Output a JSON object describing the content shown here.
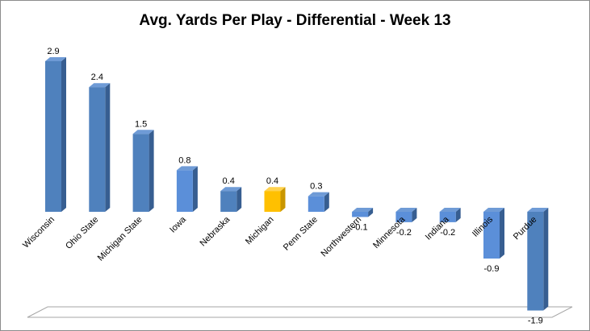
{
  "chart_data": {
    "type": "bar",
    "title": "Avg. Yards Per Play - Differential  - Week 13",
    "xlabel": "",
    "ylabel": "",
    "ylim": [
      -1.9,
      2.9
    ],
    "grid": false,
    "legend": "none",
    "categories": [
      "Wisconsin",
      "Ohio State",
      "Michigan State",
      "Iowa",
      "Nebraska",
      "Michigan",
      "Penn State",
      "Northwestern",
      "Minnesota",
      "Indiana",
      "Illinois",
      "Purdue"
    ],
    "values": [
      2.9,
      2.4,
      1.5,
      0.8,
      0.4,
      0.4,
      0.3,
      -0.1,
      -0.2,
      -0.2,
      -0.9,
      -1.9
    ],
    "data_labels": [
      "2.9",
      "2.4",
      "1.5",
      "0.8",
      "0.4",
      "0.4",
      "0.3",
      "-0.1",
      "-0.2",
      "-0.2",
      "-0.9",
      "-1.9"
    ],
    "colors": {
      "default_front": "#4f81bd",
      "default_top": "#6f9bd6",
      "default_side": "#375e91",
      "group2_front": "#5b8fd9",
      "highlight_front": "#ffc000",
      "highlight_top": "#ffd24d",
      "highlight_side": "#c99600",
      "floor_stroke": "#a6a6a6"
    },
    "highlight_category": "Michigan",
    "group2_categories": [
      "Iowa",
      "Penn State",
      "Northwestern",
      "Minnesota",
      "Indiana",
      "Illinois"
    ]
  }
}
